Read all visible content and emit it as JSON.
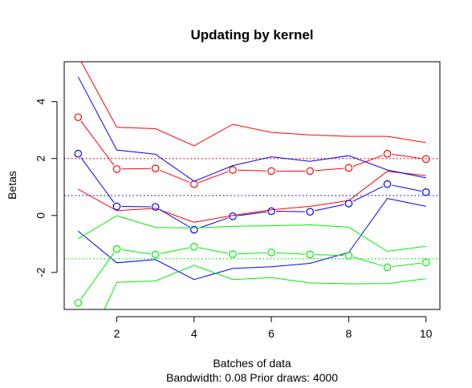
{
  "chart_data": {
    "type": "line",
    "title": "Updating by kernel",
    "xlabel": "Batches of data",
    "sublabel": "Bandwidth: 0.08 Prior draws: 4000",
    "ylabel": "Betas",
    "xlim": [
      0.64,
      10.36
    ],
    "ylim": [
      -3.3,
      5.4
    ],
    "xticks": [
      2,
      4,
      6,
      8,
      10
    ],
    "yticks": [
      -2,
      0,
      2,
      4
    ],
    "x": [
      1,
      2,
      3,
      4,
      5,
      6,
      7,
      8,
      9,
      10
    ],
    "series": [
      {
        "color": "#ff0000",
        "reference": 2.0,
        "point": [
          3.45,
          1.63,
          1.65,
          1.1,
          1.6,
          1.56,
          1.56,
          1.67,
          2.17,
          1.98
        ],
        "upper": [
          5.6,
          3.1,
          3.05,
          2.45,
          3.2,
          2.92,
          2.83,
          2.78,
          2.78,
          2.56
        ],
        "lower": [
          0.92,
          0.17,
          0.25,
          -0.24,
          0.0,
          0.2,
          0.32,
          0.52,
          1.55,
          1.4
        ]
      },
      {
        "color": "#0000ff",
        "reference": 0.7,
        "point": [
          2.17,
          0.32,
          0.3,
          -0.5,
          -0.03,
          0.15,
          0.13,
          0.42,
          1.1,
          0.82
        ],
        "upper": [
          4.87,
          2.3,
          2.15,
          1.2,
          1.75,
          2.06,
          1.9,
          2.1,
          1.6,
          1.32
        ],
        "lower": [
          -0.55,
          -1.66,
          -1.55,
          -2.25,
          -1.86,
          -1.8,
          -1.68,
          -1.3,
          0.6,
          0.32
        ]
      },
      {
        "color": "#00ee00",
        "reference": -1.52,
        "point": [
          -3.07,
          -1.18,
          -1.37,
          -1.1,
          -1.36,
          -1.3,
          -1.37,
          -1.41,
          -1.82,
          -1.65
        ],
        "upper": [
          -0.82,
          -0.01,
          -0.42,
          -0.44,
          -0.38,
          -0.36,
          -0.33,
          -0.41,
          -1.26,
          -1.08
        ],
        "lower": [
          -5.3,
          -2.35,
          -2.3,
          -1.75,
          -2.25,
          -2.18,
          -2.37,
          -2.4,
          -2.39,
          -2.22
        ]
      }
    ]
  }
}
